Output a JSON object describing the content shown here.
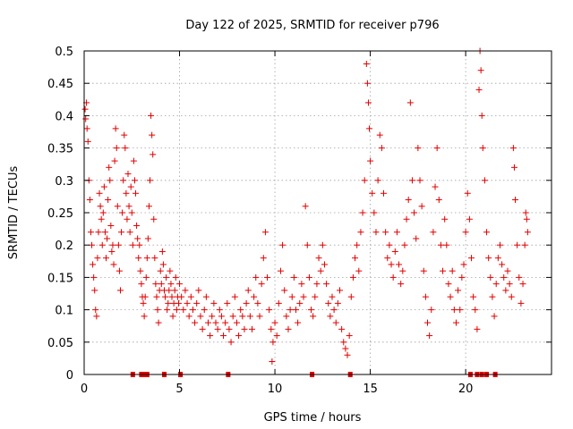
{
  "chart_data": {
    "type": "scatter",
    "title": "Day 122 of 2025, SRMTID for receiver p796",
    "xlabel": "GPS time / hours",
    "ylabel": "SRMTID / TECUs",
    "xlim": [
      0,
      24.5
    ],
    "ylim": [
      0,
      0.5
    ],
    "x_ticks": [
      0,
      5,
      10,
      15,
      20
    ],
    "x_tick_labels": [
      "0",
      "5",
      "10",
      "15",
      "20"
    ],
    "y_ticks": [
      0,
      0.05,
      0.1,
      0.15,
      0.2,
      0.25,
      0.3,
      0.35,
      0.4,
      0.45,
      0.5
    ],
    "y_tick_labels": [
      "0",
      "0.05",
      "0.1",
      "0.15",
      "0.2",
      "0.25",
      "0.3",
      "0.35",
      "0.4",
      "0.45",
      "0.5"
    ],
    "grid": true,
    "marker": "+",
    "color": "#e00000",
    "series": [
      {
        "name": "SRMTID",
        "points": [
          [
            0.05,
            0.41
          ],
          [
            0.08,
            0.395
          ],
          [
            0.12,
            0.42
          ],
          [
            0.15,
            0.38
          ],
          [
            0.2,
            0.36
          ],
          [
            0.25,
            0.3
          ],
          [
            0.3,
            0.27
          ],
          [
            0.35,
            0.22
          ],
          [
            0.4,
            0.2
          ],
          [
            0.45,
            0.17
          ],
          [
            0.5,
            0.15
          ],
          [
            0.55,
            0.13
          ],
          [
            0.6,
            0.1
          ],
          [
            0.65,
            0.09
          ],
          [
            0.7,
            0.18
          ],
          [
            0.75,
            0.22
          ],
          [
            0.8,
            0.28
          ],
          [
            0.85,
            0.26
          ],
          [
            0.9,
            0.24
          ],
          [
            0.95,
            0.2
          ],
          [
            1.0,
            0.25
          ],
          [
            1.05,
            0.29
          ],
          [
            1.1,
            0.22
          ],
          [
            1.15,
            0.18
          ],
          [
            1.2,
            0.21
          ],
          [
            1.25,
            0.27
          ],
          [
            1.3,
            0.32
          ],
          [
            1.35,
            0.3
          ],
          [
            1.4,
            0.23
          ],
          [
            1.45,
            0.19
          ],
          [
            1.5,
            0.2
          ],
          [
            1.55,
            0.17
          ],
          [
            1.6,
            0.33
          ],
          [
            1.65,
            0.38
          ],
          [
            1.7,
            0.35
          ],
          [
            1.75,
            0.26
          ],
          [
            1.8,
            0.2
          ],
          [
            1.85,
            0.16
          ],
          [
            1.9,
            0.13
          ],
          [
            1.95,
            0.22
          ],
          [
            2.0,
            0.25
          ],
          [
            2.05,
            0.3
          ],
          [
            2.1,
            0.37
          ],
          [
            2.15,
            0.35
          ],
          [
            2.2,
            0.28
          ],
          [
            2.25,
            0.24
          ],
          [
            2.3,
            0.31
          ],
          [
            2.35,
            0.26
          ],
          [
            2.4,
            0.22
          ],
          [
            2.45,
            0.29
          ],
          [
            2.5,
            0.25
          ],
          [
            2.55,
            0.2
          ],
          [
            2.6,
            0.33
          ],
          [
            2.65,
            0.3
          ],
          [
            2.7,
            0.28
          ],
          [
            2.75,
            0.23
          ],
          [
            2.8,
            0.21
          ],
          [
            2.85,
            0.18
          ],
          [
            2.9,
            0.2
          ],
          [
            2.95,
            0.16
          ],
          [
            3.0,
            0.14
          ],
          [
            3.05,
            0.12
          ],
          [
            3.1,
            0.11
          ],
          [
            3.15,
            0.09
          ],
          [
            3.2,
            0.12
          ],
          [
            3.25,
            0.15
          ],
          [
            3.3,
            0.18
          ],
          [
            3.35,
            0.21
          ],
          [
            3.4,
            0.26
          ],
          [
            3.45,
            0.3
          ],
          [
            3.5,
            0.4
          ],
          [
            3.55,
            0.37
          ],
          [
            3.6,
            0.34
          ],
          [
            3.65,
            0.24
          ],
          [
            3.7,
            0.18
          ],
          [
            3.75,
            0.14
          ],
          [
            3.8,
            0.12
          ],
          [
            3.85,
            0.1
          ],
          [
            3.9,
            0.08
          ],
          [
            3.95,
            0.13
          ],
          [
            4.0,
            0.16
          ],
          [
            4.05,
            0.14
          ],
          [
            4.1,
            0.19
          ],
          [
            4.15,
            0.17
          ],
          [
            4.2,
            0.13
          ],
          [
            4.25,
            0.12
          ],
          [
            4.3,
            0.15
          ],
          [
            4.35,
            0.1
          ],
          [
            4.4,
            0.11
          ],
          [
            4.45,
            0.13
          ],
          [
            4.5,
            0.16
          ],
          [
            4.55,
            0.14
          ],
          [
            4.6,
            0.12
          ],
          [
            4.65,
            0.09
          ],
          [
            4.7,
            0.11
          ],
          [
            4.75,
            0.13
          ],
          [
            4.8,
            0.15
          ],
          [
            4.85,
            0.1
          ],
          [
            4.9,
            0.12
          ],
          [
            4.95,
            0.11
          ],
          [
            5.0,
            0.14
          ],
          [
            5.1,
            0.12
          ],
          [
            5.2,
            0.1
          ],
          [
            5.3,
            0.13
          ],
          [
            5.4,
            0.11
          ],
          [
            5.5,
            0.09
          ],
          [
            5.6,
            0.12
          ],
          [
            5.7,
            0.1
          ],
          [
            5.8,
            0.08
          ],
          [
            5.9,
            0.11
          ],
          [
            6.0,
            0.13
          ],
          [
            6.1,
            0.09
          ],
          [
            6.2,
            0.07
          ],
          [
            6.3,
            0.1
          ],
          [
            6.4,
            0.12
          ],
          [
            6.5,
            0.08
          ],
          [
            6.6,
            0.06
          ],
          [
            6.7,
            0.09
          ],
          [
            6.8,
            0.11
          ],
          [
            6.9,
            0.08
          ],
          [
            7.0,
            0.07
          ],
          [
            7.1,
            0.1
          ],
          [
            7.2,
            0.09
          ],
          [
            7.3,
            0.06
          ],
          [
            7.4,
            0.08
          ],
          [
            7.5,
            0.11
          ],
          [
            7.6,
            0.07
          ],
          [
            7.7,
            0.05
          ],
          [
            7.8,
            0.09
          ],
          [
            7.9,
            0.12
          ],
          [
            8.0,
            0.08
          ],
          [
            8.1,
            0.06
          ],
          [
            8.2,
            0.1
          ],
          [
            8.3,
            0.09
          ],
          [
            8.4,
            0.07
          ],
          [
            8.5,
            0.11
          ],
          [
            8.6,
            0.13
          ],
          [
            8.7,
            0.09
          ],
          [
            8.8,
            0.07
          ],
          [
            8.9,
            0.12
          ],
          [
            9.0,
            0.15
          ],
          [
            9.1,
            0.11
          ],
          [
            9.2,
            0.09
          ],
          [
            9.3,
            0.14
          ],
          [
            9.4,
            0.18
          ],
          [
            9.5,
            0.22
          ],
          [
            9.6,
            0.15
          ],
          [
            9.7,
            0.1
          ],
          [
            9.8,
            0.07
          ],
          [
            9.85,
            0.02
          ],
          [
            9.9,
            0.05
          ],
          [
            10.0,
            0.08
          ],
          [
            10.1,
            0.06
          ],
          [
            10.2,
            0.11
          ],
          [
            10.3,
            0.16
          ],
          [
            10.4,
            0.2
          ],
          [
            10.5,
            0.13
          ],
          [
            10.6,
            0.09
          ],
          [
            10.7,
            0.07
          ],
          [
            10.8,
            0.1
          ],
          [
            10.9,
            0.12
          ],
          [
            11.0,
            0.15
          ],
          [
            11.1,
            0.1
          ],
          [
            11.2,
            0.08
          ],
          [
            11.3,
            0.11
          ],
          [
            11.4,
            0.14
          ],
          [
            11.5,
            0.12
          ],
          [
            11.6,
            0.26
          ],
          [
            11.7,
            0.2
          ],
          [
            11.8,
            0.15
          ],
          [
            11.9,
            0.1
          ],
          [
            12.0,
            0.09
          ],
          [
            12.1,
            0.12
          ],
          [
            12.2,
            0.14
          ],
          [
            12.3,
            0.18
          ],
          [
            12.4,
            0.16
          ],
          [
            12.5,
            0.2
          ],
          [
            12.6,
            0.17
          ],
          [
            12.7,
            0.14
          ],
          [
            12.8,
            0.11
          ],
          [
            12.9,
            0.09
          ],
          [
            13.0,
            0.12
          ],
          [
            13.1,
            0.1
          ],
          [
            13.2,
            0.08
          ],
          [
            13.3,
            0.11
          ],
          [
            13.4,
            0.13
          ],
          [
            13.5,
            0.07
          ],
          [
            13.6,
            0.05
          ],
          [
            13.7,
            0.04
          ],
          [
            13.8,
            0.03
          ],
          [
            13.9,
            0.06
          ],
          [
            14.0,
            0.12
          ],
          [
            14.1,
            0.15
          ],
          [
            14.2,
            0.18
          ],
          [
            14.3,
            0.2
          ],
          [
            14.4,
            0.16
          ],
          [
            14.5,
            0.22
          ],
          [
            14.6,
            0.25
          ],
          [
            14.7,
            0.3
          ],
          [
            14.8,
            0.48
          ],
          [
            14.85,
            0.45
          ],
          [
            14.9,
            0.42
          ],
          [
            14.95,
            0.38
          ],
          [
            15.0,
            0.33
          ],
          [
            15.1,
            0.28
          ],
          [
            15.2,
            0.25
          ],
          [
            15.3,
            0.22
          ],
          [
            15.4,
            0.3
          ],
          [
            15.5,
            0.37
          ],
          [
            15.6,
            0.35
          ],
          [
            15.7,
            0.28
          ],
          [
            15.8,
            0.22
          ],
          [
            15.9,
            0.18
          ],
          [
            16.0,
            0.2
          ],
          [
            16.1,
            0.17
          ],
          [
            16.2,
            0.15
          ],
          [
            16.3,
            0.19
          ],
          [
            16.4,
            0.22
          ],
          [
            16.5,
            0.17
          ],
          [
            16.6,
            0.14
          ],
          [
            16.7,
            0.16
          ],
          [
            16.8,
            0.2
          ],
          [
            16.9,
            0.24
          ],
          [
            17.0,
            0.27
          ],
          [
            17.1,
            0.42
          ],
          [
            17.2,
            0.3
          ],
          [
            17.3,
            0.25
          ],
          [
            17.4,
            0.21
          ],
          [
            17.5,
            0.35
          ],
          [
            17.6,
            0.3
          ],
          [
            17.7,
            0.26
          ],
          [
            17.8,
            0.16
          ],
          [
            17.9,
            0.12
          ],
          [
            18.0,
            0.08
          ],
          [
            18.1,
            0.06
          ],
          [
            18.2,
            0.1
          ],
          [
            18.3,
            0.22
          ],
          [
            18.4,
            0.29
          ],
          [
            18.5,
            0.35
          ],
          [
            18.6,
            0.27
          ],
          [
            18.7,
            0.2
          ],
          [
            18.8,
            0.16
          ],
          [
            18.9,
            0.24
          ],
          [
            19.0,
            0.2
          ],
          [
            19.1,
            0.14
          ],
          [
            19.2,
            0.12
          ],
          [
            19.3,
            0.16
          ],
          [
            19.4,
            0.1
          ],
          [
            19.5,
            0.08
          ],
          [
            19.6,
            0.13
          ],
          [
            19.7,
            0.1
          ],
          [
            19.8,
            0.15
          ],
          [
            19.9,
            0.17
          ],
          [
            20.0,
            0.22
          ],
          [
            20.1,
            0.28
          ],
          [
            20.2,
            0.24
          ],
          [
            20.3,
            0.18
          ],
          [
            20.4,
            0.12
          ],
          [
            20.5,
            0.1
          ],
          [
            20.6,
            0.07
          ],
          [
            20.7,
            0.44
          ],
          [
            20.75,
            0.5
          ],
          [
            20.8,
            0.47
          ],
          [
            20.85,
            0.4
          ],
          [
            20.9,
            0.35
          ],
          [
            21.0,
            0.3
          ],
          [
            21.1,
            0.22
          ],
          [
            21.2,
            0.18
          ],
          [
            21.3,
            0.15
          ],
          [
            21.4,
            0.12
          ],
          [
            21.5,
            0.09
          ],
          [
            21.6,
            0.14
          ],
          [
            21.7,
            0.18
          ],
          [
            21.8,
            0.2
          ],
          [
            21.9,
            0.17
          ],
          [
            22.0,
            0.15
          ],
          [
            22.1,
            0.13
          ],
          [
            22.2,
            0.16
          ],
          [
            22.3,
            0.14
          ],
          [
            22.4,
            0.12
          ],
          [
            22.5,
            0.35
          ],
          [
            22.55,
            0.32
          ],
          [
            22.6,
            0.27
          ],
          [
            22.7,
            0.2
          ],
          [
            22.8,
            0.15
          ],
          [
            22.9,
            0.11
          ],
          [
            23.0,
            0.14
          ],
          [
            23.1,
            0.2
          ],
          [
            23.15,
            0.25
          ],
          [
            23.2,
            0.24
          ],
          [
            23.25,
            0.22
          ]
        ]
      }
    ],
    "baseline_markers_x": [
      2.55,
      3.0,
      3.15,
      3.3,
      4.2,
      5.05,
      7.55,
      11.95,
      13.95,
      20.25,
      20.6,
      20.85,
      21.1,
      21.55
    ]
  }
}
